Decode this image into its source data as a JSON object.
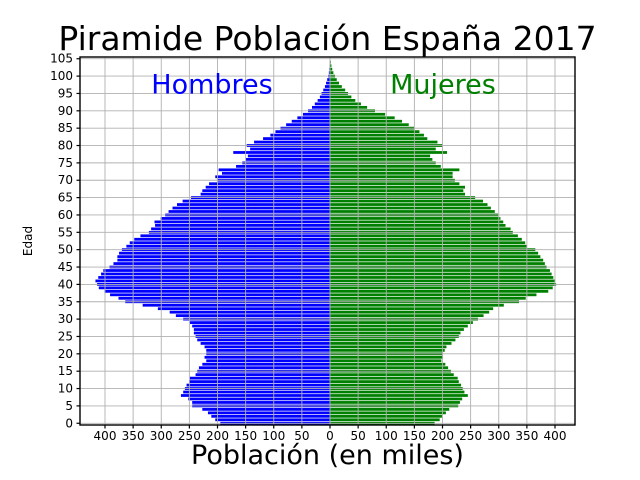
{
  "title": "Piramide Población España 2017",
  "axis": {
    "xlabel": "Población (en miles)",
    "ylabel": "Edad"
  },
  "series_labels": {
    "male": "Hombres",
    "female": "Mujeres"
  },
  "colors": {
    "male": "#0000ff",
    "female": "#008000",
    "grid": "#b0b0b0",
    "spine": "#000000",
    "male_label": "#0000ff",
    "female_label": "#008000"
  },
  "chart_data": {
    "type": "bar",
    "orientation": "horizontal-pyramid",
    "title": "Piramide Población España 2017",
    "xlabel": "Población (en miles)",
    "ylabel": "Edad",
    "grid": true,
    "xlim": [
      -440,
      440
    ],
    "ylim": [
      -0.5,
      105.5
    ],
    "x_ticks": [
      -400,
      -350,
      -300,
      -250,
      -200,
      -150,
      -100,
      -50,
      0,
      50,
      100,
      150,
      200,
      250,
      300,
      350,
      400
    ],
    "x_tick_labels": [
      "400",
      "350",
      "300",
      "250",
      "200",
      "150",
      "100",
      "50",
      "0",
      "50",
      "100",
      "150",
      "200",
      "250",
      "300",
      "350",
      "400"
    ],
    "y_ticks": [
      0,
      5,
      10,
      15,
      20,
      25,
      30,
      35,
      40,
      45,
      50,
      55,
      60,
      65,
      70,
      75,
      80,
      85,
      90,
      95,
      100,
      105
    ],
    "ages": [
      0,
      1,
      2,
      3,
      4,
      5,
      6,
      7,
      8,
      9,
      10,
      11,
      12,
      13,
      14,
      15,
      16,
      17,
      18,
      19,
      20,
      21,
      22,
      23,
      24,
      25,
      26,
      27,
      28,
      29,
      30,
      31,
      32,
      33,
      34,
      35,
      36,
      37,
      38,
      39,
      40,
      41,
      42,
      43,
      44,
      45,
      46,
      47,
      48,
      49,
      50,
      51,
      52,
      53,
      54,
      55,
      56,
      57,
      58,
      59,
      60,
      61,
      62,
      63,
      64,
      65,
      66,
      67,
      68,
      69,
      70,
      71,
      72,
      73,
      74,
      75,
      76,
      77,
      78,
      79,
      80,
      81,
      82,
      83,
      84,
      85,
      86,
      87,
      88,
      89,
      90,
      91,
      92,
      93,
      94,
      95,
      96,
      97,
      98,
      99,
      100,
      101,
      102,
      103,
      104,
      105
    ],
    "series": [
      {
        "name": "Hombres",
        "side": "left",
        "values": [
          195,
          204,
          211,
          217,
          227,
          245,
          245,
          252,
          265,
          261,
          258,
          255,
          250,
          249,
          239,
          236,
          233,
          227,
          220,
          223,
          220,
          220,
          223,
          230,
          236,
          239,
          242,
          242,
          245,
          249,
          261,
          274,
          285,
          306,
          333,
          364,
          376,
          391,
          401,
          411,
          414,
          417,
          412,
          407,
          403,
          392,
          385,
          378,
          378,
          375,
          370,
          362,
          356,
          348,
          337,
          322,
          318,
          311,
          312,
          301,
          293,
          287,
          280,
          272,
          262,
          247,
          230,
          227,
          221,
          215,
          201,
          204,
          192,
          198,
          167,
          156,
          150,
          146,
          172,
          142,
          148,
          135,
          119,
          106,
          97,
          88,
          78,
          68,
          58,
          48,
          39,
          32,
          27,
          22,
          18,
          15,
          12,
          9,
          7,
          5,
          3,
          2,
          1.3,
          0.8,
          0.4,
          0.2
        ]
      },
      {
        "name": "Mujeres",
        "side": "right",
        "values": [
          186,
          195,
          199,
          206,
          212,
          228,
          231,
          235,
          245,
          239,
          236,
          233,
          229,
          227,
          220,
          215,
          210,
          205,
          198,
          201,
          201,
          204,
          207,
          216,
          223,
          229,
          232,
          238,
          245,
          254,
          263,
          273,
          283,
          290,
          309,
          336,
          348,
          367,
          388,
          396,
          402,
          400,
          397,
          394,
          391,
          385,
          382,
          379,
          374,
          370,
          365,
          350,
          347,
          341,
          334,
          325,
          321,
          312,
          308,
          303,
          299,
          293,
          286,
          280,
          272,
          258,
          240,
          237,
          240,
          230,
          222,
          218,
          218,
          230,
          197,
          188,
          182,
          178,
          208,
          188,
          200,
          191,
          173,
          167,
          159,
          150,
          140,
          128,
          115,
          98,
          80,
          66,
          55,
          45,
          38,
          32,
          27,
          21,
          16,
          12,
          9,
          6,
          4,
          2.5,
          1.5,
          0.8
        ]
      }
    ]
  }
}
